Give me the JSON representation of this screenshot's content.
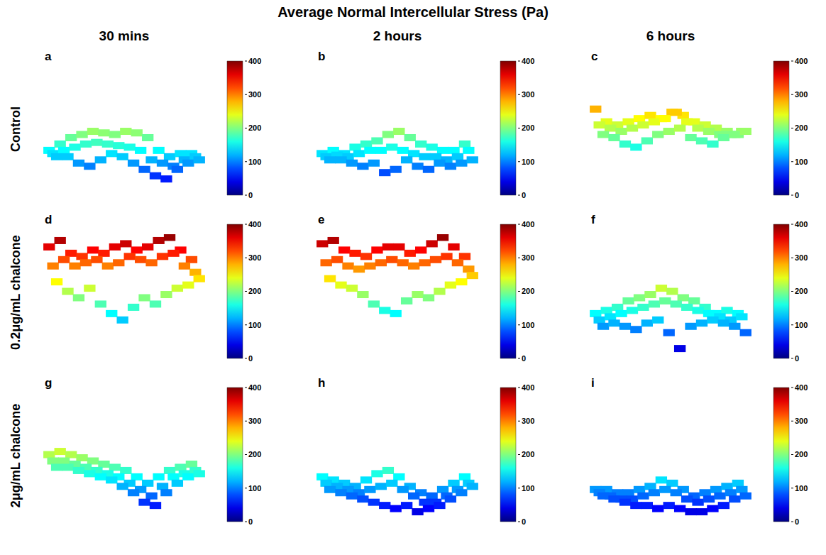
{
  "title": "Average Normal Intercellular Stress (Pa)",
  "columns": [
    "30 mins",
    "2 hours",
    "6 hours"
  ],
  "rows": [
    "Control",
    "0.2μg/mL chalcone",
    "2μg/mL chalcone"
  ],
  "chart_data": [
    {
      "type": "surface",
      "panel": "a",
      "ylim": [
        0,
        400
      ],
      "tick_labels": false,
      "color_bar": {
        "range": [
          0,
          400
        ],
        "ticks": [
          0,
          100,
          200,
          300,
          400
        ]
      },
      "cells": [
        [
          150,
          170,
          190,
          200,
          210,
          205,
          200,
          210,
          205,
          190,
          150,
          130,
          140,
          140
        ],
        [
          140,
          150,
          160,
          170,
          175,
          170,
          165,
          160,
          150,
          120,
          110,
          100,
          120,
          130
        ],
        [
          130,
          130,
          110,
          100,
          120,
          140,
          130,
          110,
          90,
          70,
          60,
          90,
          110,
          120
        ]
      ]
    },
    {
      "type": "surface",
      "panel": "b",
      "ylim": [
        0,
        400
      ],
      "tick_labels": false,
      "color_bar": {
        "range": [
          0,
          400
        ],
        "ticks": [
          0,
          100,
          200,
          300,
          400
        ]
      },
      "cells": [
        [
          140,
          150,
          140,
          160,
          170,
          180,
          200,
          210,
          190,
          170,
          160,
          150,
          150,
          170
        ],
        [
          130,
          135,
          130,
          140,
          150,
          150,
          160,
          150,
          140,
          130,
          130,
          120,
          130,
          150
        ],
        [
          120,
          120,
          110,
          100,
          110,
          80,
          90,
          120,
          100,
          90,
          110,
          100,
          110,
          120
        ]
      ]
    },
    {
      "type": "surface",
      "panel": "c",
      "ylim": [
        0,
        400
      ],
      "tick_labels": false,
      "color_bar": {
        "range": [
          0,
          400
        ],
        "ticks": [
          0,
          100,
          200,
          300,
          400
        ]
      },
      "cells": [
        [
          280,
          240,
          230,
          240,
          250,
          260,
          250,
          270,
          260,
          240,
          230,
          220,
          210,
          200
        ],
        [
          230,
          220,
          210,
          220,
          230,
          240,
          250,
          270,
          240,
          220,
          210,
          200,
          200,
          210
        ],
        [
          200,
          190,
          170,
          160,
          180,
          200,
          210,
          220,
          190,
          180,
          170,
          190,
          200,
          210
        ]
      ]
    },
    {
      "type": "surface",
      "panel": "d",
      "ylim": [
        0,
        400
      ],
      "tick_labels": false,
      "color_bar": {
        "range": [
          0,
          400
        ],
        "ticks": [
          0,
          100,
          200,
          300,
          400
        ]
      },
      "cells": [
        [
          360,
          380,
          340,
          330,
          350,
          340,
          360,
          370,
          350,
          360,
          380,
          390,
          350,
          320
        ],
        [
          300,
          320,
          300,
          310,
          320,
          300,
          310,
          330,
          320,
          310,
          330,
          340,
          300,
          280
        ],
        [
          250,
          220,
          200,
          230,
          180,
          150,
          130,
          170,
          200,
          180,
          210,
          230,
          240,
          260
        ]
      ]
    },
    {
      "type": "surface",
      "panel": "e",
      "ylim": [
        0,
        400
      ],
      "tick_labels": false,
      "color_bar": {
        "range": [
          0,
          400
        ],
        "ticks": [
          0,
          100,
          200,
          300,
          400
        ]
      },
      "cells": [
        [
          370,
          380,
          350,
          340,
          330,
          350,
          360,
          360,
          340,
          350,
          370,
          390,
          360,
          330
        ],
        [
          310,
          320,
          300,
          290,
          300,
          310,
          320,
          310,
          300,
          310,
          320,
          330,
          310,
          290
        ],
        [
          260,
          240,
          230,
          210,
          180,
          160,
          150,
          190,
          210,
          200,
          220,
          240,
          250,
          270
        ]
      ]
    },
    {
      "type": "surface",
      "panel": "f",
      "ylim": [
        0,
        400
      ],
      "tick_labels": false,
      "color_bar": {
        "range": [
          0,
          400
        ],
        "ticks": [
          0,
          100,
          200,
          300,
          400
        ]
      },
      "cells": [
        [
          150,
          160,
          170,
          190,
          200,
          210,
          230,
          220,
          200,
          190,
          170,
          150,
          160,
          150
        ],
        [
          130,
          140,
          150,
          160,
          170,
          180,
          190,
          180,
          170,
          160,
          150,
          140,
          130,
          140
        ],
        [
          110,
          120,
          110,
          100,
          120,
          130,
          90,
          40,
          110,
          120,
          130,
          120,
          110,
          90
        ]
      ]
    },
    {
      "type": "surface",
      "panel": "g",
      "ylim": [
        0,
        400
      ],
      "tick_labels": false,
      "color_bar": {
        "range": [
          0,
          400
        ],
        "ticks": [
          0,
          100,
          200,
          300,
          400
        ]
      },
      "cells": [
        [
          220,
          230,
          220,
          210,
          200,
          190,
          180,
          170,
          150,
          130,
          150,
          170,
          180,
          190
        ],
        [
          200,
          200,
          190,
          180,
          170,
          160,
          150,
          130,
          110,
          90,
          120,
          150,
          160,
          170
        ],
        [
          180,
          180,
          170,
          160,
          150,
          140,
          120,
          100,
          70,
          60,
          100,
          130,
          150,
          160
        ]
      ]
    },
    {
      "type": "surface",
      "panel": "h",
      "ylim": [
        0,
        400
      ],
      "tick_labels": false,
      "color_bar": {
        "range": [
          0,
          400
        ],
        "ticks": [
          0,
          100,
          200,
          300,
          400
        ]
      },
      "cells": [
        [
          150,
          140,
          130,
          120,
          140,
          160,
          170,
          150,
          120,
          100,
          90,
          110,
          130,
          150
        ],
        [
          130,
          120,
          110,
          100,
          110,
          120,
          130,
          110,
          90,
          70,
          70,
          90,
          110,
          130
        ],
        [
          110,
          100,
          90,
          80,
          70,
          60,
          50,
          60,
          40,
          50,
          60,
          80,
          100,
          120
        ]
      ]
    },
    {
      "type": "surface",
      "panel": "i",
      "ylim": [
        0,
        400
      ],
      "tick_labels": false,
      "color_bar": {
        "range": [
          0,
          400
        ],
        "ticks": [
          0,
          100,
          200,
          300,
          400
        ]
      },
      "cells": [
        [
          110,
          110,
          100,
          100,
          110,
          120,
          140,
          130,
          110,
          90,
          100,
          110,
          120,
          130
        ],
        [
          100,
          90,
          80,
          80,
          90,
          100,
          110,
          100,
          80,
          70,
          80,
          90,
          100,
          110
        ],
        [
          90,
          80,
          70,
          60,
          60,
          50,
          60,
          50,
          40,
          40,
          50,
          60,
          80,
          90
        ]
      ]
    }
  ]
}
